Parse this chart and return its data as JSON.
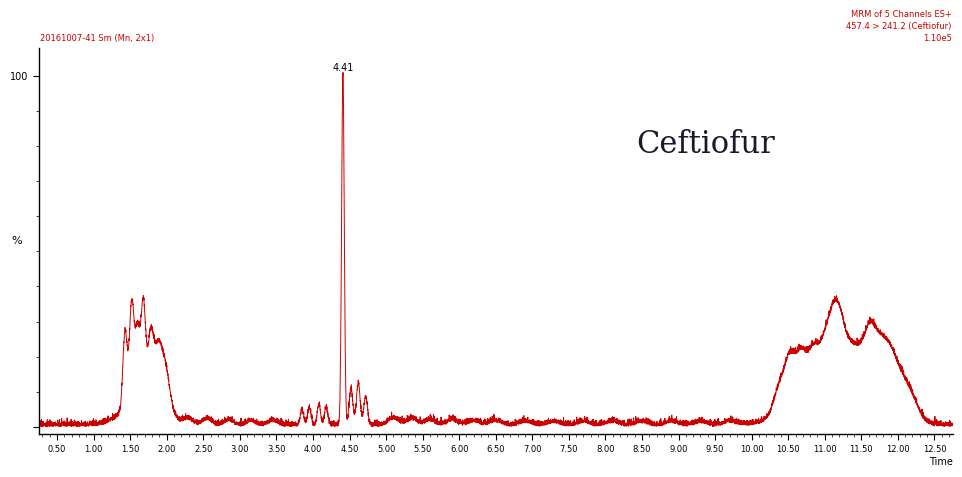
{
  "title_left": "20161007-41 Sm (Mn, 2x1)",
  "title_right_line1": "MRM of 5 Channels ES+",
  "title_right_line2": "457.4 > 241.2 (Ceftiofur)",
  "title_right_line3": "1.10e5",
  "label_center": "Ceftiofur",
  "peak_label": "4.41",
  "xlabel": "Time",
  "ylabel": "%",
  "xlim": [
    0.25,
    12.75
  ],
  "ylim": [
    -0.02,
    1.08
  ],
  "x_ticks": [
    0.5,
    1.0,
    1.5,
    2.0,
    2.5,
    3.0,
    3.5,
    4.0,
    4.5,
    5.0,
    5.5,
    6.0,
    6.5,
    7.0,
    7.5,
    8.0,
    8.5,
    9.0,
    9.5,
    10.0,
    10.5,
    11.0,
    11.5,
    12.0,
    12.5
  ],
  "line_color": "#cc0000",
  "background_color": "#ffffff",
  "axis_color": "#000000",
  "title_color_left": "#cc0000",
  "title_color_right": "#cc0000",
  "label_color_center": "#1a1a2e",
  "figsize": [
    9.62,
    4.65
  ],
  "dpi": 100
}
